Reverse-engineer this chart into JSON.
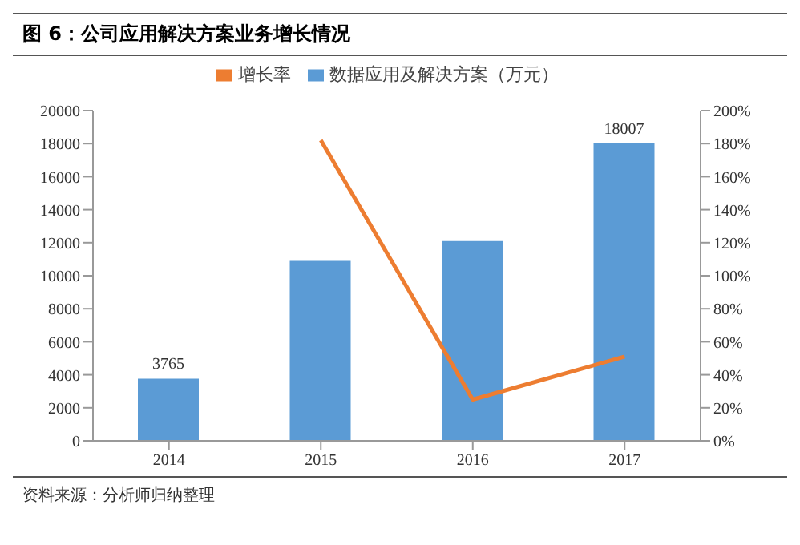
{
  "chart_data": {
    "type": "bar",
    "title": "图 6：公司应用解决方案业务增长情况",
    "categories": [
      "2014",
      "2015",
      "2016",
      "2017"
    ],
    "series": [
      {
        "name": "数据应用及解决方案（万元）",
        "color": "#5b9bd5",
        "values": [
          3765,
          10900,
          12100,
          18007
        ],
        "value_labels": [
          "3765",
          null,
          null,
          "18007"
        ]
      },
      {
        "name": "增长率",
        "type": "line",
        "axis": "y2",
        "color": "#ed7d31",
        "values": [
          null,
          182,
          25,
          51
        ]
      }
    ],
    "ylim": [
      0,
      20000
    ],
    "yticks": [
      0,
      2000,
      4000,
      6000,
      8000,
      10000,
      12000,
      14000,
      16000,
      18000,
      20000
    ],
    "y2lim": [
      0,
      200
    ],
    "y2ticks": [
      {
        "value": 0,
        "label": "0%"
      },
      {
        "value": 20,
        "label": "20%"
      },
      {
        "value": 40,
        "label": "40%"
      },
      {
        "value": 60,
        "label": "60%"
      },
      {
        "value": 80,
        "label": "80%"
      },
      {
        "value": 100,
        "label": "100%"
      },
      {
        "value": 120,
        "label": "120%"
      },
      {
        "value": 140,
        "label": "140%"
      },
      {
        "value": 160,
        "label": "160%"
      },
      {
        "value": 180,
        "label": "180%"
      },
      {
        "value": 200,
        "label": "200%"
      }
    ],
    "legend": "top",
    "grid": false,
    "marker": "none",
    "annotations": [
      "资料来源：分析师归纳整理"
    ]
  }
}
